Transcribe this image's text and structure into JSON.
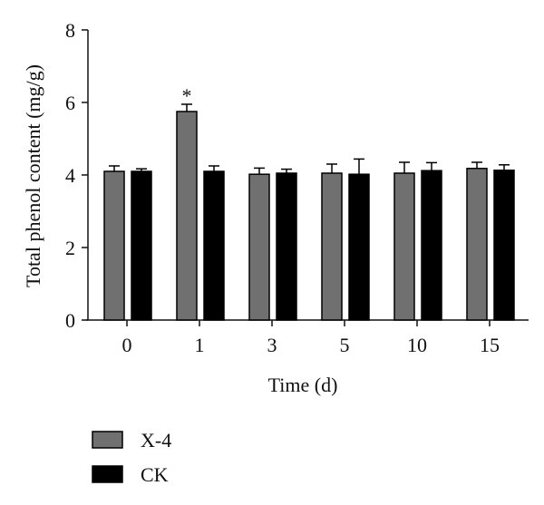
{
  "chart_data": {
    "type": "bar",
    "title": "",
    "xlabel": "Time (d)",
    "ylabel": "Total phenol content (mg/g)",
    "ylim": [
      0,
      8
    ],
    "yticks": [
      "0",
      "2",
      "4",
      "6",
      "8"
    ],
    "categories": [
      "0",
      "1",
      "3",
      "5",
      "10",
      "15"
    ],
    "series": [
      {
        "name": "X-4",
        "color": "#707070",
        "values": [
          4.1,
          5.75,
          4.02,
          4.05,
          4.05,
          4.18
        ],
        "errors": [
          0.15,
          0.2,
          0.17,
          0.25,
          0.3,
          0.17
        ]
      },
      {
        "name": "CK",
        "color": "#000000",
        "values": [
          4.1,
          4.1,
          4.05,
          4.02,
          4.12,
          4.13
        ],
        "errors": [
          0.07,
          0.15,
          0.11,
          0.42,
          0.22,
          0.15
        ]
      }
    ],
    "annotations": [
      {
        "text": "*",
        "category": "1",
        "series": "X-4"
      }
    ],
    "legend": "bottom-left",
    "grid": false
  }
}
